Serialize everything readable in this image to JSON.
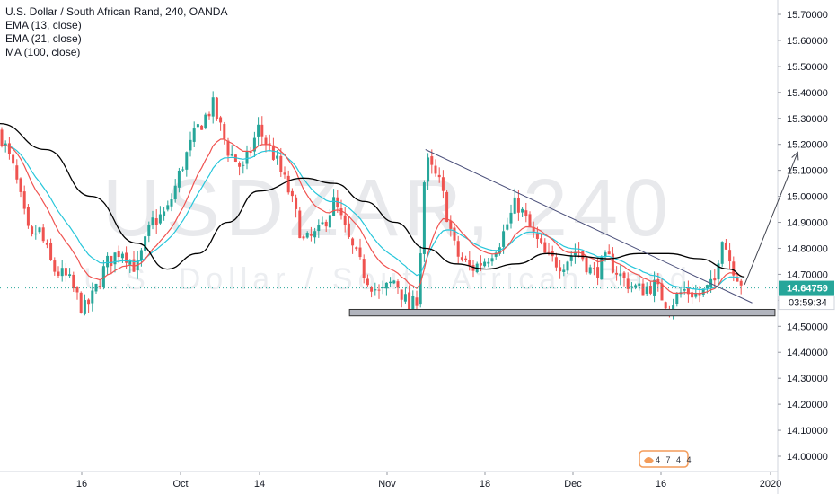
{
  "chart_data": {
    "type": "candlestick",
    "title": "U.S. Dollar / South African Rand, 240, OANDA",
    "symbol": "USDZAR",
    "interval": "240",
    "description": "U.S. Dollar / South African Rand",
    "indicators": [
      "EMA (13, close)",
      "EMA (21, close)",
      "MA (100, close)"
    ],
    "indicator_colors": {
      "ema13": "#f05350",
      "ema21": "#26c6da",
      "ma100": "#000000"
    },
    "candle_colors": {
      "up": "#26a69a",
      "down": "#ef5350"
    },
    "y_axis": {
      "ticks": [
        "15.70000",
        "15.60000",
        "15.50000",
        "15.40000",
        "15.30000",
        "15.20000",
        "15.10000",
        "15.00000",
        "14.90000",
        "14.80000",
        "14.70000",
        "14.60000",
        "14.50000",
        "14.40000",
        "14.30000",
        "14.20000",
        "14.10000",
        "14.00000"
      ],
      "range": [
        13.95,
        15.77
      ]
    },
    "x_axis": {
      "ticks": [
        "16",
        "Oct",
        "14",
        "Nov",
        "18",
        "Dec",
        "16",
        "2020"
      ]
    },
    "current_price": "14.64759",
    "countdown": "03:59:34",
    "price_path": [
      [
        "2019-09-06",
        15.25
      ],
      [
        "2019-09-08",
        15.08
      ],
      [
        "2019-09-10",
        14.82
      ],
      [
        "2019-09-11",
        14.88
      ],
      [
        "2019-09-13",
        14.72
      ],
      [
        "2019-09-15",
        14.68
      ],
      [
        "2019-09-17",
        14.56
      ],
      [
        "2019-09-18",
        14.6
      ],
      [
        "2019-09-20",
        14.74
      ],
      [
        "2019-09-22",
        14.8
      ],
      [
        "2019-09-24",
        14.72
      ],
      [
        "2019-09-26",
        14.9
      ],
      [
        "2019-09-28",
        14.94
      ],
      [
        "2019-09-30",
        15.12
      ],
      [
        "2019-10-02",
        15.26
      ],
      [
        "2019-10-04",
        15.35
      ],
      [
        "2019-10-06",
        15.18
      ],
      [
        "2019-10-08",
        15.1
      ],
      [
        "2019-10-10",
        15.26
      ],
      [
        "2019-10-12",
        15.16
      ],
      [
        "2019-10-14",
        15.02
      ],
      [
        "2019-10-16",
        14.82
      ],
      [
        "2019-10-18",
        14.86
      ],
      [
        "2019-10-20",
        14.98
      ],
      [
        "2019-10-22",
        14.82
      ],
      [
        "2019-10-24",
        14.7
      ],
      [
        "2019-10-26",
        14.62
      ],
      [
        "2019-10-28",
        14.68
      ],
      [
        "2019-10-30",
        14.56
      ],
      [
        "2019-10-31",
        14.62
      ],
      [
        "2019-11-01",
        15.14
      ],
      [
        "2019-11-03",
        15.04
      ],
      [
        "2019-11-05",
        14.78
      ],
      [
        "2019-11-07",
        14.72
      ],
      [
        "2019-11-09",
        14.76
      ],
      [
        "2019-11-11",
        14.84
      ],
      [
        "2019-11-13",
        14.98
      ],
      [
        "2019-11-15",
        14.86
      ],
      [
        "2019-11-17",
        14.76
      ],
      [
        "2019-11-19",
        14.74
      ],
      [
        "2019-11-21",
        14.8
      ],
      [
        "2019-11-23",
        14.7
      ],
      [
        "2019-11-25",
        14.76
      ],
      [
        "2019-11-27",
        14.68
      ],
      [
        "2019-11-29",
        14.64
      ],
      [
        "2019-12-01",
        14.66
      ],
      [
        "2019-12-03",
        14.58
      ],
      [
        "2019-12-05",
        14.64
      ],
      [
        "2019-12-07",
        14.62
      ],
      [
        "2019-12-09",
        14.66
      ],
      [
        "2019-12-10",
        14.86
      ],
      [
        "2019-12-11",
        14.76
      ],
      [
        "2019-12-12",
        14.7
      ],
      [
        "2019-12-13",
        14.65
      ]
    ],
    "ma100_path": [
      [
        "2019-09-06",
        15.28
      ],
      [
        "2019-09-12",
        15.18
      ],
      [
        "2019-09-18",
        15.0
      ],
      [
        "2019-09-24",
        14.82
      ],
      [
        "2019-09-28",
        14.72
      ],
      [
        "2019-10-02",
        14.78
      ],
      [
        "2019-10-06",
        14.9
      ],
      [
        "2019-10-10",
        15.02
      ],
      [
        "2019-10-16",
        15.07
      ],
      [
        "2019-10-20",
        15.05
      ],
      [
        "2019-10-24",
        14.98
      ],
      [
        "2019-10-28",
        14.9
      ],
      [
        "2019-11-01",
        14.8
      ],
      [
        "2019-11-05",
        14.74
      ],
      [
        "2019-11-09",
        14.72
      ],
      [
        "2019-11-13",
        14.74
      ],
      [
        "2019-11-17",
        14.78
      ],
      [
        "2019-11-21",
        14.77
      ],
      [
        "2019-11-25",
        14.76
      ],
      [
        "2019-11-29",
        14.78
      ],
      [
        "2019-12-03",
        14.78
      ],
      [
        "2019-12-07",
        14.76
      ],
      [
        "2019-12-11",
        14.72
      ],
      [
        "2019-12-13",
        14.69
      ]
    ],
    "drawings": {
      "trendline": {
        "start": [
          "2019-11-01",
          15.18
        ],
        "end": [
          "2019-12-14",
          14.59
        ]
      },
      "support_zone": {
        "x_start": "2019-10-22",
        "x_end": "2019-12-17",
        "y_low": 14.54,
        "y_high": 14.565
      },
      "arrow": {
        "start": [
          "2019-12-13",
          14.66
        ],
        "end": [
          "2019-12-20",
          15.17
        ]
      }
    },
    "grid": false,
    "legend_position": "top-left"
  },
  "logo": {
    "badge_text": "4 7 4 4"
  }
}
